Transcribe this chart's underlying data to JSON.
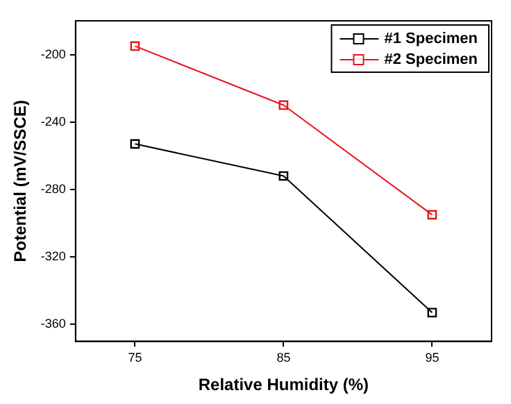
{
  "chart_data": {
    "type": "line",
    "xlabel": "Relative Humidity (%)",
    "ylabel": "Potential (mV/SSCE)",
    "x": [
      75,
      85,
      95
    ],
    "series": [
      {
        "name": "#1 Specimen",
        "color": "#000000",
        "values": [
          -253,
          -272,
          -353
        ]
      },
      {
        "name": "#2 Specimen",
        "color": "#e8141c",
        "values": [
          -195,
          -230,
          -295
        ]
      }
    ],
    "xlim": [
      71,
      99
    ],
    "xticks": [
      75,
      85,
      95
    ],
    "ylim": [
      -370,
      -180
    ],
    "yticks": [
      -200,
      -240,
      -280,
      -320,
      -360
    ],
    "grid": false,
    "legend": "top right",
    "marker": "square",
    "line_style": "solid"
  }
}
